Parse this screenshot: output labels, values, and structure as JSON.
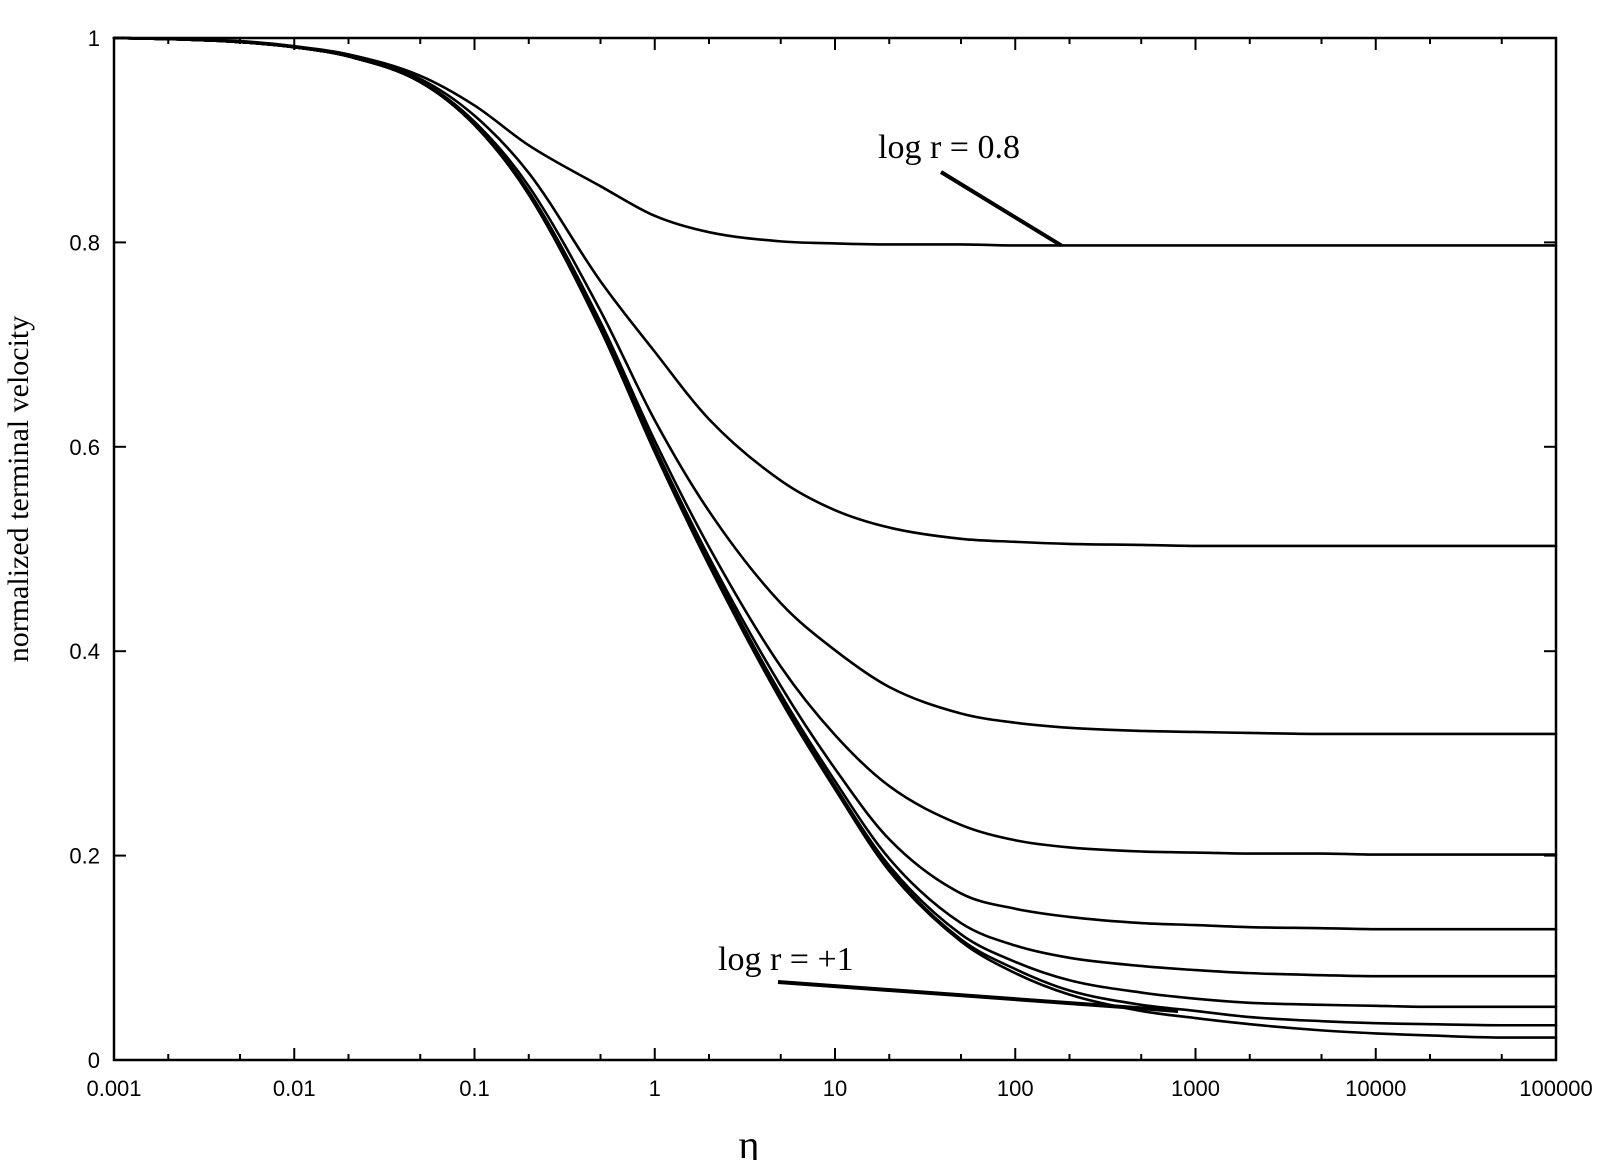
{
  "chart_data": {
    "type": "line",
    "xlabel": "η",
    "ylabel": "normalized terminal velocity",
    "x_scale": "log",
    "xlim": [
      0.001,
      100000
    ],
    "ylim": [
      0,
      1
    ],
    "grid": false,
    "x_ticks": [
      "0.001",
      "0.01",
      "0.1",
      "1",
      "10",
      "100",
      "1000",
      "10000",
      "100000"
    ],
    "y_ticks": [
      "0",
      "0.2",
      "0.4",
      "0.6",
      "0.8",
      "1"
    ],
    "x": [
      0.001,
      0.002,
      0.005,
      0.01,
      0.02,
      0.05,
      0.1,
      0.2,
      0.5,
      1,
      2,
      5,
      10,
      20,
      50,
      100,
      200,
      500,
      1000,
      2000,
      5000,
      10000,
      20000,
      50000,
      100000
    ],
    "series": [
      {
        "values": [
          1.0,
          0.999,
          0.997,
          0.992,
          0.984,
          0.963,
          0.934,
          0.895,
          0.855,
          0.826,
          0.81,
          0.801,
          0.799,
          0.798,
          0.798,
          0.797,
          0.797,
          0.797,
          0.797,
          0.797,
          0.797,
          0.797,
          0.797,
          0.797,
          0.797
        ]
      },
      {
        "values": [
          1.0,
          0.999,
          0.996,
          0.991,
          0.983,
          0.96,
          0.924,
          0.868,
          0.762,
          0.693,
          0.627,
          0.567,
          0.538,
          0.521,
          0.51,
          0.507,
          0.505,
          0.504,
          0.503,
          0.503,
          0.503,
          0.503,
          0.503,
          0.503,
          0.503
        ]
      },
      {
        "values": [
          1.0,
          0.999,
          0.996,
          0.991,
          0.982,
          0.958,
          0.918,
          0.855,
          0.733,
          0.626,
          0.537,
          0.447,
          0.401,
          0.365,
          0.339,
          0.33,
          0.325,
          0.322,
          0.321,
          0.32,
          0.319,
          0.319,
          0.319,
          0.319,
          0.319
        ]
      },
      {
        "values": [
          1.0,
          0.999,
          0.996,
          0.991,
          0.982,
          0.957,
          0.916,
          0.85,
          0.722,
          0.606,
          0.502,
          0.385,
          0.318,
          0.268,
          0.23,
          0.215,
          0.208,
          0.204,
          0.203,
          0.202,
          0.202,
          0.201,
          0.201,
          0.201,
          0.201
        ]
      },
      {
        "values": [
          1.0,
          0.999,
          0.996,
          0.991,
          0.982,
          0.957,
          0.915,
          0.848,
          0.718,
          0.6,
          0.492,
          0.366,
          0.285,
          0.216,
          0.163,
          0.148,
          0.14,
          0.134,
          0.132,
          0.13,
          0.129,
          0.128,
          0.128,
          0.128,
          0.128
        ]
      },
      {
        "values": [
          1.0,
          0.999,
          0.996,
          0.991,
          0.982,
          0.957,
          0.915,
          0.847,
          0.716,
          0.597,
          0.488,
          0.358,
          0.273,
          0.197,
          0.134,
          0.112,
          0.1,
          0.092,
          0.088,
          0.085,
          0.083,
          0.082,
          0.082,
          0.082,
          0.082
        ]
      },
      {
        "values": [
          1.0,
          0.999,
          0.996,
          0.991,
          0.982,
          0.957,
          0.915,
          0.847,
          0.715,
          0.596,
          0.486,
          0.355,
          0.268,
          0.19,
          0.123,
          0.096,
          0.078,
          0.066,
          0.06,
          0.056,
          0.054,
          0.053,
          0.052,
          0.052,
          0.052
        ]
      },
      {
        "values": [
          1.0,
          0.999,
          0.996,
          0.991,
          0.982,
          0.957,
          0.915,
          0.847,
          0.715,
          0.595,
          0.485,
          0.353,
          0.266,
          0.187,
          0.118,
          0.089,
          0.068,
          0.054,
          0.048,
          0.042,
          0.038,
          0.036,
          0.035,
          0.034,
          0.034
        ]
      },
      {
        "values": [
          1.0,
          0.999,
          0.996,
          0.991,
          0.982,
          0.957,
          0.915,
          0.847,
          0.715,
          0.595,
          0.484,
          0.352,
          0.265,
          0.185,
          0.116,
          0.085,
          0.064,
          0.048,
          0.041,
          0.035,
          0.029,
          0.026,
          0.024,
          0.022,
          0.022
        ]
      }
    ],
    "annotations": [
      {
        "text": "log r = 0.8",
        "points_to_x": 180,
        "points_to_y": 0.797
      },
      {
        "text": "log r = +1",
        "points_to_x": 800,
        "points_to_y": 0.048
      }
    ]
  }
}
